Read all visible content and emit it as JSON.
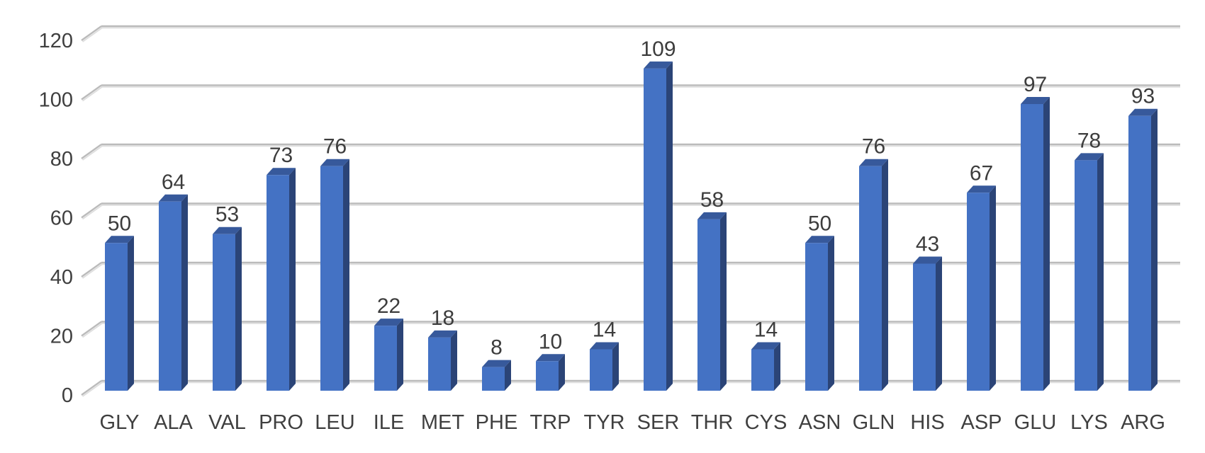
{
  "chart_data": {
    "type": "bar",
    "style": "3d-column",
    "title": "",
    "xlabel": "",
    "ylabel": "",
    "categories": [
      "GLY",
      "ALA",
      "VAL",
      "PRO",
      "LEU",
      "ILE",
      "MET",
      "PHE",
      "TRP",
      "TYR",
      "SER",
      "THR",
      "CYS",
      "ASN",
      "GLN",
      "HIS",
      "ASP",
      "GLU",
      "LYS",
      "ARG"
    ],
    "values": [
      50,
      64,
      53,
      73,
      76,
      22,
      18,
      8,
      10,
      14,
      109,
      58,
      14,
      50,
      76,
      43,
      67,
      97,
      78,
      93
    ],
    "data_labels": [
      50,
      64,
      53,
      73,
      76,
      22,
      18,
      8,
      10,
      14,
      109,
      58,
      14,
      50,
      76,
      43,
      67,
      97,
      78,
      93
    ],
    "y_ticks": [
      0,
      20,
      40,
      60,
      80,
      100,
      120
    ],
    "ylim": [
      0,
      120
    ],
    "grid": true,
    "legend": false,
    "colors": {
      "bar_front": "#4472C4",
      "bar_top": "#37599B",
      "bar_side": "#2B4477",
      "gridline_dark": "#BBBBBB",
      "gridline_light": "#DEDEDE",
      "text": "#3F3F3F",
      "background": "#FFFFFF"
    }
  }
}
